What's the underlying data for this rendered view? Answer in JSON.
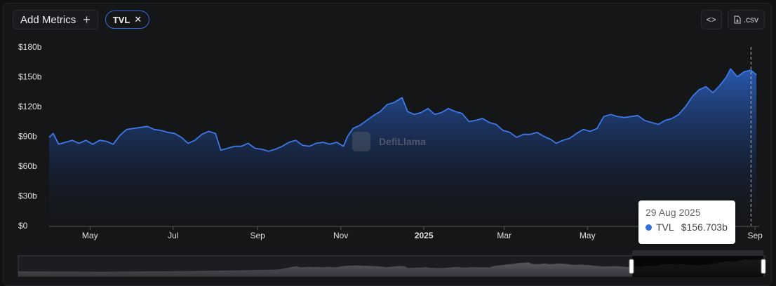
{
  "toolbar": {
    "add_metrics_label": "Add Metrics",
    "plus_symbol": "+",
    "metric_chip": "TVL",
    "chip_close": "✕",
    "embed_label": "<>",
    "csv_label": ".csv"
  },
  "watermark": "DefiLlama",
  "tooltip": {
    "date": "29 Aug 2025",
    "series": "TVL",
    "value": "$156.703b"
  },
  "colors": {
    "accent": "#2f6fe0",
    "line": "#3c78e8",
    "background": "#151618"
  },
  "chart_data": {
    "type": "area",
    "title": "",
    "xlabel": "",
    "ylabel": "",
    "ylim": [
      0,
      180
    ],
    "y_ticks": [
      0,
      30,
      60,
      90,
      120,
      150,
      180
    ],
    "y_tick_labels": [
      "$0",
      "$30b",
      "$60b",
      "$90b",
      "$120b",
      "$150b",
      "$180b"
    ],
    "x_ticks": [
      {
        "label": "May",
        "x": "2024-05-01"
      },
      {
        "label": "Jul",
        "x": "2024-07-01"
      },
      {
        "label": "Sep",
        "x": "2024-09-01"
      },
      {
        "label": "Nov",
        "x": "2024-11-01"
      },
      {
        "label": "2025",
        "x": "2025-01-01",
        "bold": true
      },
      {
        "label": "Mar",
        "x": "2025-03-01"
      },
      {
        "label": "May",
        "x": "2025-05-01"
      },
      {
        "label": "Sep",
        "x": "2025-09-01"
      }
    ],
    "series": [
      {
        "name": "TVL",
        "points": [
          [
            "2024-04-01",
            89
          ],
          [
            "2024-04-04",
            93
          ],
          [
            "2024-04-08",
            82
          ],
          [
            "2024-04-13",
            84
          ],
          [
            "2024-04-18",
            86
          ],
          [
            "2024-04-23",
            83
          ],
          [
            "2024-04-28",
            86
          ],
          [
            "2024-05-03",
            82
          ],
          [
            "2024-05-08",
            86
          ],
          [
            "2024-05-13",
            85
          ],
          [
            "2024-05-18",
            82
          ],
          [
            "2024-05-23",
            91
          ],
          [
            "2024-05-28",
            97
          ],
          [
            "2024-06-02",
            98
          ],
          [
            "2024-06-07",
            99
          ],
          [
            "2024-06-12",
            100
          ],
          [
            "2024-06-17",
            97
          ],
          [
            "2024-06-22",
            96
          ],
          [
            "2024-06-27",
            94
          ],
          [
            "2024-07-02",
            93
          ],
          [
            "2024-07-07",
            89
          ],
          [
            "2024-07-12",
            83
          ],
          [
            "2024-07-17",
            86
          ],
          [
            "2024-07-22",
            92
          ],
          [
            "2024-07-27",
            95
          ],
          [
            "2024-08-01",
            93
          ],
          [
            "2024-08-05",
            76
          ],
          [
            "2024-08-10",
            78
          ],
          [
            "2024-08-15",
            80
          ],
          [
            "2024-08-20",
            80
          ],
          [
            "2024-08-25",
            83
          ],
          [
            "2024-08-30",
            78
          ],
          [
            "2024-09-04",
            77
          ],
          [
            "2024-09-09",
            75
          ],
          [
            "2024-09-14",
            77
          ],
          [
            "2024-09-19",
            80
          ],
          [
            "2024-09-24",
            84
          ],
          [
            "2024-09-29",
            86
          ],
          [
            "2024-10-04",
            81
          ],
          [
            "2024-10-09",
            80
          ],
          [
            "2024-10-14",
            83
          ],
          [
            "2024-10-19",
            84
          ],
          [
            "2024-10-24",
            82
          ],
          [
            "2024-10-29",
            84
          ],
          [
            "2024-11-03",
            80
          ],
          [
            "2024-11-06",
            90
          ],
          [
            "2024-11-10",
            98
          ],
          [
            "2024-11-15",
            101
          ],
          [
            "2024-11-20",
            106
          ],
          [
            "2024-11-25",
            111
          ],
          [
            "2024-11-30",
            115
          ],
          [
            "2024-12-05",
            122
          ],
          [
            "2024-12-10",
            124
          ],
          [
            "2024-12-16",
            129
          ],
          [
            "2024-12-20",
            115
          ],
          [
            "2024-12-25",
            112
          ],
          [
            "2024-12-30",
            114
          ],
          [
            "2025-01-04",
            118
          ],
          [
            "2025-01-09",
            112
          ],
          [
            "2025-01-14",
            114
          ],
          [
            "2025-01-19",
            118
          ],
          [
            "2025-01-24",
            115
          ],
          [
            "2025-01-29",
            113
          ],
          [
            "2025-02-03",
            105
          ],
          [
            "2025-02-08",
            106
          ],
          [
            "2025-02-13",
            108
          ],
          [
            "2025-02-18",
            104
          ],
          [
            "2025-02-23",
            102
          ],
          [
            "2025-02-28",
            96
          ],
          [
            "2025-03-05",
            94
          ],
          [
            "2025-03-10",
            89
          ],
          [
            "2025-03-15",
            92
          ],
          [
            "2025-03-20",
            92
          ],
          [
            "2025-03-25",
            94
          ],
          [
            "2025-03-30",
            90
          ],
          [
            "2025-04-04",
            87
          ],
          [
            "2025-04-08",
            83
          ],
          [
            "2025-04-13",
            86
          ],
          [
            "2025-04-18",
            88
          ],
          [
            "2025-04-23",
            93
          ],
          [
            "2025-04-28",
            97
          ],
          [
            "2025-05-03",
            95
          ],
          [
            "2025-05-08",
            98
          ],
          [
            "2025-05-13",
            110
          ],
          [
            "2025-05-18",
            112
          ],
          [
            "2025-05-23",
            110
          ],
          [
            "2025-05-28",
            109
          ],
          [
            "2025-06-02",
            110
          ],
          [
            "2025-06-07",
            111
          ],
          [
            "2025-06-12",
            106
          ],
          [
            "2025-06-17",
            104
          ],
          [
            "2025-06-22",
            102
          ],
          [
            "2025-06-27",
            106
          ],
          [
            "2025-07-02",
            108
          ],
          [
            "2025-07-07",
            112
          ],
          [
            "2025-07-12",
            120
          ],
          [
            "2025-07-17",
            130
          ],
          [
            "2025-07-22",
            137
          ],
          [
            "2025-07-27",
            140
          ],
          [
            "2025-08-01",
            134
          ],
          [
            "2025-08-06",
            141
          ],
          [
            "2025-08-11",
            150
          ],
          [
            "2025-08-14",
            158
          ],
          [
            "2025-08-19",
            150
          ],
          [
            "2025-08-24",
            155
          ],
          [
            "2025-08-29",
            156.703
          ],
          [
            "2025-09-02",
            152
          ]
        ]
      }
    ],
    "x_range": [
      "2024-04-01",
      "2025-09-04"
    ],
    "hover_date": "2025-08-29",
    "grid": false,
    "legend": "none"
  }
}
